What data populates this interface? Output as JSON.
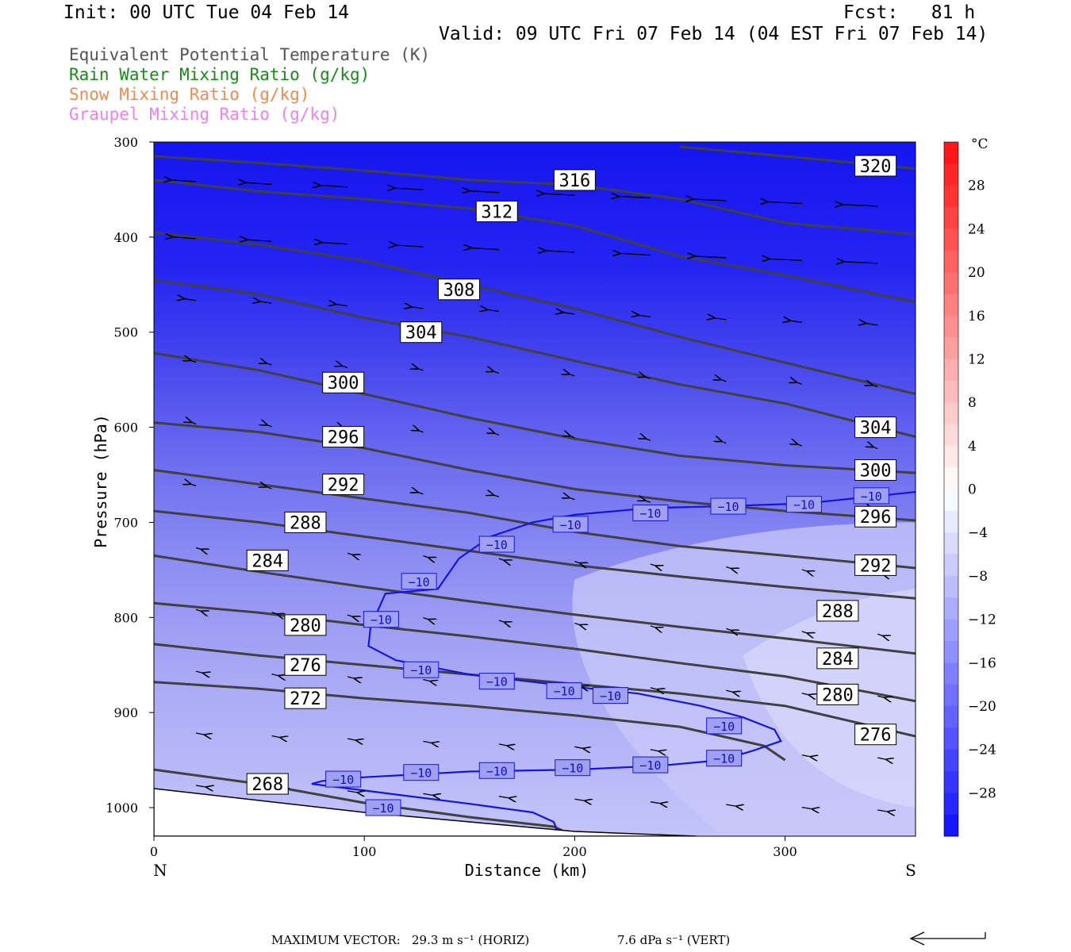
{
  "header": {
    "init": "Init: 00 UTC Tue 04 Feb 14",
    "fcst": "Fcst:   81 h",
    "valid": "Valid: 09 UTC Fri 07 Feb 14 (04 EST Fri 07 Feb 14)"
  },
  "legend": [
    {
      "label": "Equivalent Potential Temperature (K)",
      "color": "#555555"
    },
    {
      "label": "Rain Water Mixing Ratio (g/kg)",
      "color": "#1a8a1a"
    },
    {
      "label": "Snow Mixing Ratio (g/kg)",
      "color": "#f08a50"
    },
    {
      "label": "Graupel Mixing Ratio (g/kg)",
      "color": "#ee82ee"
    }
  ],
  "footer": {
    "max_vector_label": "MAXIMUM VECTOR:",
    "horiz": "29.3 m s⁻¹ (HORIZ)",
    "vert": "7.6 dPa s⁻¹ (VERT)"
  },
  "chart_data": {
    "type": "cross-section",
    "xlabel": "Distance (km)",
    "ylabel": "Pressure (hPa)",
    "xlim": [
      0,
      362
    ],
    "ylim": [
      300,
      1030
    ],
    "x_ticks": [
      0,
      100,
      200,
      300
    ],
    "y_ticks": [
      300,
      400,
      500,
      600,
      700,
      800,
      900,
      1000
    ],
    "x_end_labels": {
      "left": "N",
      "right": "S"
    },
    "colorbar": {
      "unit": "°C",
      "tick_labels": [
        "28",
        "24",
        "20",
        "16",
        "12",
        "8",
        "4",
        "0",
        "−4",
        "−8",
        "−12",
        "−16",
        "−20",
        "−24",
        "−28"
      ],
      "tick_values": [
        28,
        24,
        20,
        16,
        12,
        8,
        4,
        0,
        -4,
        -8,
        -12,
        -16,
        -20,
        -24,
        -28
      ],
      "range": [
        -32,
        32
      ],
      "step": 2
    },
    "theta_e_contours": [
      {
        "label": "268",
        "points": [
          [
            0,
            960
          ],
          [
            50,
            975
          ],
          [
            100,
            995
          ],
          [
            150,
            1010
          ],
          [
            190,
            1020
          ],
          [
            200,
            1030
          ]
        ]
      },
      {
        "label": "272",
        "points": [
          [
            0,
            868
          ],
          [
            50,
            875
          ],
          [
            100,
            885
          ],
          [
            150,
            893
          ],
          [
            200,
            903
          ],
          [
            250,
            915
          ],
          [
            290,
            935
          ],
          [
            300,
            950
          ]
        ]
      },
      {
        "label": "276",
        "points": [
          [
            0,
            828
          ],
          [
            50,
            840
          ],
          [
            100,
            850
          ],
          [
            150,
            860
          ],
          [
            200,
            870
          ],
          [
            250,
            880
          ],
          [
            300,
            893
          ],
          [
            362,
            925
          ]
        ]
      },
      {
        "label": "280",
        "points": [
          [
            0,
            785
          ],
          [
            50,
            795
          ],
          [
            100,
            808
          ],
          [
            150,
            820
          ],
          [
            200,
            833
          ],
          [
            250,
            848
          ],
          [
            300,
            862
          ],
          [
            362,
            888
          ]
        ]
      },
      {
        "label": "284",
        "points": [
          [
            0,
            735
          ],
          [
            50,
            752
          ],
          [
            100,
            768
          ],
          [
            150,
            783
          ],
          [
            200,
            797
          ],
          [
            250,
            810
          ],
          [
            300,
            822
          ],
          [
            362,
            838
          ]
        ]
      },
      {
        "label": "288",
        "points": [
          [
            0,
            688
          ],
          [
            50,
            700
          ],
          [
            100,
            715
          ],
          [
            150,
            730
          ],
          [
            200,
            745
          ],
          [
            250,
            757
          ],
          [
            300,
            768
          ],
          [
            362,
            780
          ]
        ]
      },
      {
        "label": "292",
        "points": [
          [
            0,
            645
          ],
          [
            50,
            660
          ],
          [
            100,
            675
          ],
          [
            150,
            690
          ],
          [
            200,
            710
          ],
          [
            250,
            725
          ],
          [
            300,
            735
          ],
          [
            362,
            748
          ]
        ]
      },
      {
        "label": "296",
        "points": [
          [
            0,
            595
          ],
          [
            50,
            605
          ],
          [
            100,
            622
          ],
          [
            150,
            645
          ],
          [
            200,
            665
          ],
          [
            250,
            678
          ],
          [
            300,
            688
          ],
          [
            362,
            698
          ]
        ]
      },
      {
        "label": "300",
        "points": [
          [
            0,
            522
          ],
          [
            50,
            540
          ],
          [
            100,
            565
          ],
          [
            150,
            590
          ],
          [
            200,
            612
          ],
          [
            250,
            630
          ],
          [
            300,
            640
          ],
          [
            362,
            648
          ]
        ]
      },
      {
        "label": "304",
        "points": [
          [
            0,
            445
          ],
          [
            50,
            460
          ],
          [
            100,
            485
          ],
          [
            150,
            505
          ],
          [
            200,
            530
          ],
          [
            250,
            555
          ],
          [
            300,
            575
          ],
          [
            362,
            610
          ]
        ]
      },
      {
        "label": "308",
        "points": [
          [
            0,
            395
          ],
          [
            50,
            408
          ],
          [
            100,
            425
          ],
          [
            150,
            450
          ],
          [
            200,
            475
          ],
          [
            250,
            505
          ],
          [
            300,
            532
          ],
          [
            362,
            565
          ]
        ]
      },
      {
        "label": "312",
        "points": [
          [
            0,
            340
          ],
          [
            50,
            352
          ],
          [
            100,
            360
          ],
          [
            150,
            370
          ],
          [
            200,
            388
          ],
          [
            250,
            420
          ],
          [
            300,
            440
          ],
          [
            362,
            468
          ]
        ]
      },
      {
        "label": "316",
        "points": [
          [
            0,
            315
          ],
          [
            50,
            322
          ],
          [
            100,
            330
          ],
          [
            150,
            340
          ],
          [
            200,
            345
          ],
          [
            250,
            360
          ],
          [
            300,
            385
          ],
          [
            362,
            397
          ]
        ]
      },
      {
        "label": "320",
        "points": [
          [
            250,
            305
          ],
          [
            300,
            315
          ],
          [
            362,
            328
          ]
        ]
      }
    ],
    "theta_e_labels": [
      {
        "label": "268",
        "x": 54,
        "p": 975
      },
      {
        "label": "272",
        "x": 72,
        "p": 885
      },
      {
        "label": "276",
        "x": 72,
        "p": 850
      },
      {
        "label": "280",
        "x": 72,
        "p": 808
      },
      {
        "label": "284",
        "x": 54,
        "p": 740
      },
      {
        "label": "288",
        "x": 72,
        "p": 700
      },
      {
        "label": "292",
        "x": 90,
        "p": 660
      },
      {
        "label": "296",
        "x": 90,
        "p": 610
      },
      {
        "label": "300",
        "x": 90,
        "p": 553
      },
      {
        "label": "304",
        "x": 127,
        "p": 500
      },
      {
        "label": "308",
        "x": 145,
        "p": 455
      },
      {
        "label": "312",
        "x": 163,
        "p": 373
      },
      {
        "label": "316",
        "x": 200,
        "p": 340
      },
      {
        "label": "320",
        "x": 343,
        "p": 325
      },
      {
        "label": "304",
        "x": 343,
        "p": 600
      },
      {
        "label": "300",
        "x": 343,
        "p": 645
      },
      {
        "label": "296",
        "x": 343,
        "p": 694
      },
      {
        "label": "292",
        "x": 343,
        "p": 745
      },
      {
        "label": "288",
        "x": 325,
        "p": 793
      },
      {
        "label": "284",
        "x": 325,
        "p": 843
      },
      {
        "label": "280",
        "x": 325,
        "p": 881
      },
      {
        "label": "276",
        "x": 343,
        "p": 923
      }
    ],
    "temp_minus10_contour": {
      "label": "−10",
      "points": [
        [
          362,
          668
        ],
        [
          345,
          672
        ],
        [
          310,
          680
        ],
        [
          270,
          683
        ],
        [
          235,
          685
        ],
        [
          200,
          692
        ],
        [
          180,
          700
        ],
        [
          160,
          715
        ],
        [
          145,
          738
        ],
        [
          135,
          770
        ],
        [
          110,
          775
        ],
        [
          103,
          810
        ],
        [
          102,
          830
        ],
        [
          115,
          845
        ],
        [
          150,
          860
        ],
        [
          200,
          873
        ],
        [
          230,
          880
        ],
        [
          260,
          893
        ],
        [
          280,
          905
        ],
        [
          295,
          918
        ],
        [
          298,
          930
        ],
        [
          285,
          940
        ],
        [
          270,
          950
        ],
        [
          240,
          956
        ],
        [
          200,
          960
        ],
        [
          150,
          962
        ],
        [
          100,
          968
        ],
        [
          80,
          972
        ],
        [
          75,
          975
        ],
        [
          100,
          982
        ],
        [
          150,
          996
        ],
        [
          180,
          1005
        ],
        [
          190,
          1015
        ],
        [
          192,
          1025
        ]
      ]
    },
    "temp_labels": [
      {
        "x": 341,
        "p": 672
      },
      {
        "x": 309,
        "p": 681
      },
      {
        "x": 273,
        "p": 683
      },
      {
        "x": 236,
        "p": 690
      },
      {
        "x": 198,
        "p": 702
      },
      {
        "x": 163,
        "p": 723
      },
      {
        "x": 126,
        "p": 762
      },
      {
        "x": 108,
        "p": 802
      },
      {
        "x": 127,
        "p": 855
      },
      {
        "x": 163,
        "p": 867
      },
      {
        "x": 195,
        "p": 877
      },
      {
        "x": 217,
        "p": 882
      },
      {
        "x": 271,
        "p": 914
      },
      {
        "x": 271,
        "p": 948
      },
      {
        "x": 236,
        "p": 955
      },
      {
        "x": 199,
        "p": 958
      },
      {
        "x": 163,
        "p": 961
      },
      {
        "x": 127,
        "p": 963
      },
      {
        "x": 90,
        "p": 970
      },
      {
        "x": 109,
        "p": 1000
      }
    ],
    "ground_line": [
      [
        0,
        980
      ],
      [
        100,
        1005
      ],
      [
        200,
        1025
      ],
      [
        258,
        1030
      ]
    ],
    "max_wind_vector_label": "29.3 m s⁻¹"
  }
}
